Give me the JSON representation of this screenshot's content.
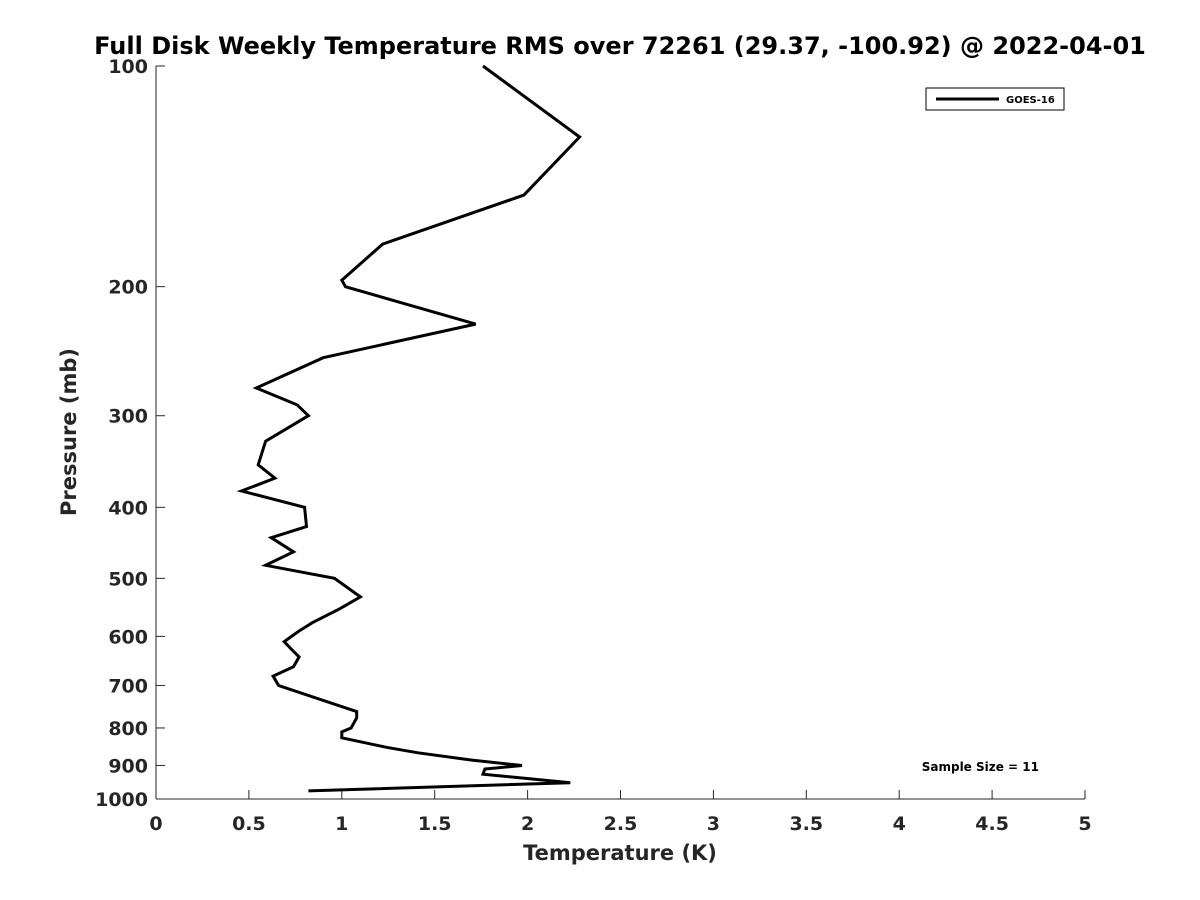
{
  "chart_data": {
    "type": "line",
    "title": "Full Disk Weekly Temperature RMS over 72261 (29.37, -100.92) @ 2022-04-01",
    "xlabel": "Temperature (K)",
    "ylabel": "Pressure (mb)",
    "xlim": [
      0,
      5
    ],
    "ylim": [
      100,
      1000
    ],
    "y_scale": "log",
    "y_reversed": true,
    "x_ticks": [
      "0",
      "0.5",
      "1",
      "1.5",
      "2",
      "2.5",
      "3",
      "3.5",
      "4",
      "4.5",
      "5"
    ],
    "y_ticks": [
      "100",
      "200",
      "300",
      "400",
      "500",
      "600",
      "700",
      "800",
      "900",
      "1000"
    ],
    "grid": false,
    "legend_position": "top-right",
    "annotation": "Sample Size = 11",
    "series": [
      {
        "name": "GOES-16",
        "color": "#000000",
        "points": [
          [
            1.76,
            100
          ],
          [
            2.28,
            125
          ],
          [
            1.98,
            150
          ],
          [
            1.22,
            175
          ],
          [
            1.0,
            196
          ],
          [
            1.02,
            200
          ],
          [
            1.72,
            225
          ],
          [
            0.9,
            250
          ],
          [
            0.54,
            275
          ],
          [
            0.76,
            290
          ],
          [
            0.82,
            300
          ],
          [
            0.59,
            325
          ],
          [
            0.55,
            350
          ],
          [
            0.64,
            365
          ],
          [
            0.46,
            380
          ],
          [
            0.8,
            400
          ],
          [
            0.81,
            425
          ],
          [
            0.62,
            440
          ],
          [
            0.74,
            460
          ],
          [
            0.59,
            480
          ],
          [
            0.96,
            500
          ],
          [
            1.1,
            530
          ],
          [
            0.99,
            550
          ],
          [
            0.84,
            575
          ],
          [
            0.77,
            590
          ],
          [
            0.69,
            610
          ],
          [
            0.73,
            625
          ],
          [
            0.77,
            640
          ],
          [
            0.74,
            660
          ],
          [
            0.63,
            680
          ],
          [
            0.66,
            700
          ],
          [
            1.08,
            760
          ],
          [
            1.08,
            775
          ],
          [
            1.05,
            800
          ],
          [
            1.0,
            810
          ],
          [
            1.0,
            825
          ],
          [
            1.24,
            850
          ],
          [
            1.41,
            865
          ],
          [
            1.7,
            885
          ],
          [
            1.97,
            900
          ],
          [
            1.77,
            910
          ],
          [
            1.76,
            925
          ],
          [
            2.23,
            950
          ],
          [
            0.82,
            975
          ]
        ]
      }
    ]
  }
}
